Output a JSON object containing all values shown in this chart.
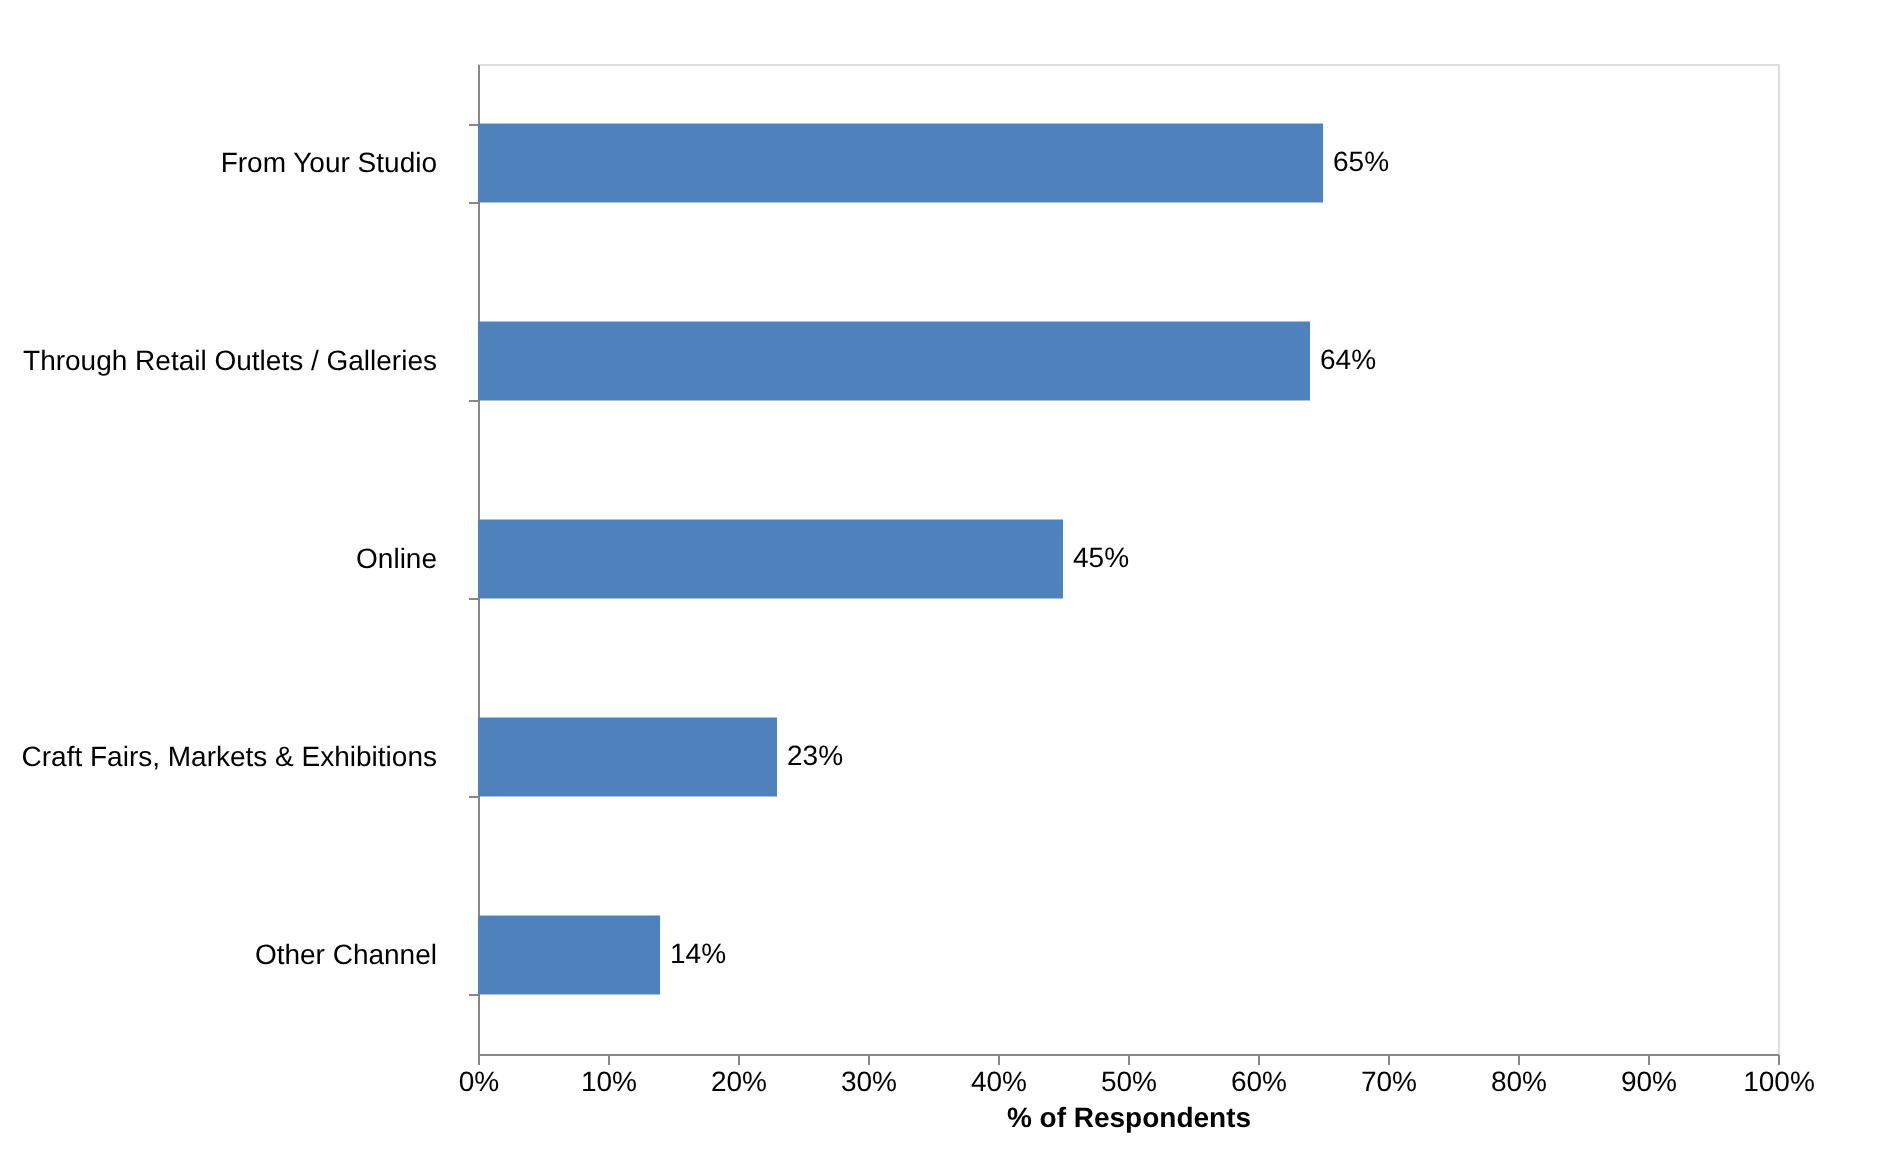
{
  "chart_data": {
    "type": "bar",
    "orientation": "horizontal",
    "xlabel": "% of Respondents",
    "categories": [
      "From Your Studio",
      "Through Retail Outlets / Galleries",
      "Online",
      "Craft Fairs, Markets & Exhibitions",
      "Other Channel"
    ],
    "values": [
      65,
      64,
      45,
      23,
      14
    ],
    "value_labels": [
      "65%",
      "64%",
      "45%",
      "23%",
      "14%"
    ],
    "color": "#4f81bd",
    "xlim": [
      0,
      100
    ],
    "xticks": [
      {
        "value": 0,
        "label": "0%"
      },
      {
        "value": 10,
        "label": "10%"
      },
      {
        "value": 20,
        "label": "20%"
      },
      {
        "value": 30,
        "label": "30%"
      },
      {
        "value": 40,
        "label": "40%"
      },
      {
        "value": 50,
        "label": "50%"
      },
      {
        "value": 60,
        "label": "60%"
      },
      {
        "value": 70,
        "label": "70%"
      },
      {
        "value": 80,
        "label": "80%"
      },
      {
        "value": 90,
        "label": "90%"
      },
      {
        "value": 100,
        "label": "100%"
      }
    ],
    "grid": false
  }
}
